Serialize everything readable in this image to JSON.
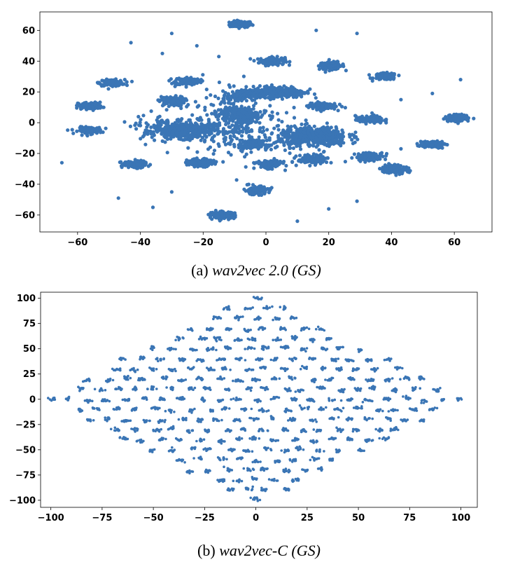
{
  "colors": {
    "points": "#3a75b5"
  },
  "chart_data": [
    {
      "type": "scatter",
      "caption": {
        "prefix": "(a) ",
        "text": "wav2vec 2.0 (GS)"
      },
      "title": "",
      "xlabel": "",
      "ylabel": "",
      "xlim": [
        -72,
        72
      ],
      "ylim": [
        -71,
        72
      ],
      "xticks": [
        -60,
        -40,
        -20,
        0,
        20,
        40,
        60
      ],
      "yticks": [
        -60,
        -40,
        -20,
        0,
        20,
        40,
        60
      ],
      "grid": false,
      "clusters": [
        {
          "x": -8,
          "y": 64,
          "sx": 1.8,
          "sy": 1.0,
          "n": 120
        },
        {
          "x": 2,
          "y": 40,
          "sx": 2.0,
          "sy": 1.3,
          "n": 140
        },
        {
          "x": 21,
          "y": 37,
          "sx": 2.0,
          "sy": 1.2,
          "n": 110
        },
        {
          "x": 38,
          "y": 30,
          "sx": 1.8,
          "sy": 1.1,
          "n": 110
        },
        {
          "x": -49,
          "y": 26,
          "sx": 2.0,
          "sy": 1.0,
          "n": 120
        },
        {
          "x": -25,
          "y": 27,
          "sx": 2.0,
          "sy": 1.3,
          "n": 120
        },
        {
          "x": -30,
          "y": 14,
          "sx": 2.0,
          "sy": 1.5,
          "n": 120
        },
        {
          "x": -56,
          "y": 11,
          "sx": 1.9,
          "sy": 1.1,
          "n": 120
        },
        {
          "x": -56,
          "y": -5,
          "sx": 1.9,
          "sy": 1.1,
          "n": 120
        },
        {
          "x": -26,
          "y": -5,
          "sx": 4.8,
          "sy": 2.6,
          "n": 380
        },
        {
          "x": -8,
          "y": 18,
          "sx": 2.2,
          "sy": 1.6,
          "n": 140
        },
        {
          "x": 4,
          "y": 20,
          "sx": 4.2,
          "sy": 1.8,
          "n": 320
        },
        {
          "x": -8,
          "y": 5,
          "sx": 2.6,
          "sy": 2.2,
          "n": 220
        },
        {
          "x": 18,
          "y": 11,
          "sx": 2.2,
          "sy": 1.2,
          "n": 120
        },
        {
          "x": 33,
          "y": 2,
          "sx": 2.2,
          "sy": 1.2,
          "n": 120
        },
        {
          "x": 61,
          "y": 3,
          "sx": 2.0,
          "sy": 1.1,
          "n": 120
        },
        {
          "x": 15,
          "y": -9,
          "sx": 5.5,
          "sy": 3.2,
          "n": 480
        },
        {
          "x": -4,
          "y": -14,
          "sx": 2.2,
          "sy": 1.3,
          "n": 140
        },
        {
          "x": 1,
          "y": -27,
          "sx": 2.0,
          "sy": 1.3,
          "n": 140
        },
        {
          "x": 15,
          "y": -24,
          "sx": 2.4,
          "sy": 1.4,
          "n": 150
        },
        {
          "x": -42,
          "y": -27,
          "sx": 2.0,
          "sy": 1.1,
          "n": 120
        },
        {
          "x": -21,
          "y": -26,
          "sx": 2.0,
          "sy": 1.2,
          "n": 120
        },
        {
          "x": 33,
          "y": -22,
          "sx": 2.2,
          "sy": 1.3,
          "n": 120
        },
        {
          "x": 41,
          "y": -30,
          "sx": 2.2,
          "sy": 1.4,
          "n": 130
        },
        {
          "x": 53,
          "y": -14,
          "sx": 2.0,
          "sy": 1.1,
          "n": 110
        },
        {
          "x": -3,
          "y": -44,
          "sx": 2.0,
          "sy": 1.3,
          "n": 130
        },
        {
          "x": -14,
          "y": -60,
          "sx": 2.0,
          "sy": 1.1,
          "n": 120
        }
      ],
      "bridges": [
        {
          "x": -10,
          "y": 0,
          "sx": 9,
          "sy": 11,
          "n": 300
        },
        {
          "x": -36,
          "y": -3,
          "sx": 3,
          "sy": 4,
          "n": 40
        }
      ],
      "outliers": [
        [
          -43,
          52
        ],
        [
          -30,
          58
        ],
        [
          -33,
          45
        ],
        [
          -22,
          50
        ],
        [
          -15,
          43
        ],
        [
          16,
          60
        ],
        [
          29,
          58
        ],
        [
          62,
          28
        ],
        [
          53,
          19
        ],
        [
          43,
          15
        ],
        [
          -65,
          -26
        ],
        [
          -47,
          -49
        ],
        [
          -30,
          -45
        ],
        [
          -36,
          -55
        ],
        [
          20,
          -56
        ],
        [
          29,
          -51
        ],
        [
          10,
          -64
        ],
        [
          43,
          -17
        ]
      ]
    },
    {
      "type": "scatter",
      "caption": {
        "prefix": "(b) ",
        "text": "wav2vec-C (GS)"
      },
      "title": "",
      "xlabel": "",
      "ylabel": "",
      "xlim": [
        -105,
        108
      ],
      "ylim": [
        -107,
        106
      ],
      "xticks": [
        -100,
        -75,
        -50,
        -25,
        0,
        25,
        50,
        75,
        100
      ],
      "yticks": [
        -100,
        -75,
        -50,
        -25,
        0,
        25,
        50,
        75,
        100
      ],
      "grid": false,
      "cluster_grid": {
        "rows": 21,
        "cols": 23,
        "x_half_width": 100,
        "y_half_height": 100,
        "cluster_half_width": 1.0,
        "cluster_half_height": 0.8,
        "points_per_cluster": 10
      }
    }
  ]
}
